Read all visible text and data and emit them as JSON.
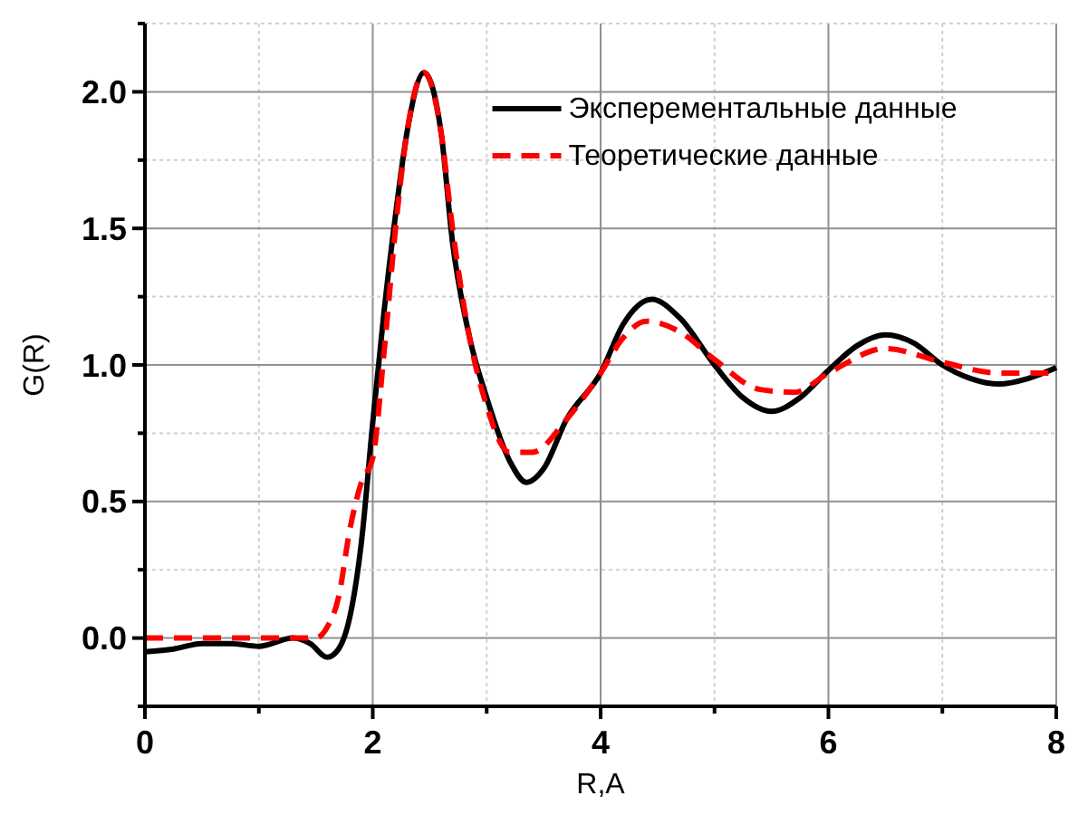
{
  "chart_data": {
    "type": "line",
    "xlabel": "R,A",
    "ylabel": "G(R)",
    "xlim": [
      0,
      8
    ],
    "ylim": [
      -0.25,
      2.25
    ],
    "xticks": [
      0,
      {
        "value": 1,
        "label": null
      },
      2,
      {
        "value": 3,
        "label": null
      },
      4,
      {
        "value": 5,
        "label": null
      },
      6,
      {
        "value": 7,
        "label": null
      },
      8
    ],
    "yticks": [
      {
        "value": -0.25,
        "label": null
      },
      {
        "value": 0,
        "label": "0.0"
      },
      {
        "value": 0.25,
        "label": null
      },
      {
        "value": 0.5,
        "label": "0.5"
      },
      {
        "value": 0.75,
        "label": null
      },
      {
        "value": 1,
        "label": "1.0"
      },
      {
        "value": 1.25,
        "label": null
      },
      {
        "value": 1.5,
        "label": "1.5"
      },
      {
        "value": 1.75,
        "label": null
      },
      {
        "value": 2,
        "label": "2.0"
      },
      {
        "value": 2.25,
        "label": null
      }
    ],
    "grid": true,
    "legend": "top right",
    "series": [
      {
        "name": "Эксперементальные данные",
        "color": "#000000",
        "line_style": "solid",
        "x": [
          0,
          0.25,
          0.5,
          0.75,
          1,
          1.3,
          1.45,
          1.6,
          1.7,
          1.8,
          1.9,
          2,
          2.1,
          2.2,
          2.3,
          2.45,
          2.6,
          2.7,
          2.85,
          3,
          3.2,
          3.35,
          3.5,
          3.7,
          4,
          4.2,
          4.45,
          4.7,
          5,
          5.25,
          5.5,
          5.75,
          6,
          6.25,
          6.5,
          6.75,
          7,
          7.25,
          7.5,
          7.75,
          8
        ],
        "values": [
          -0.05,
          -0.04,
          -0.02,
          -0.02,
          -0.03,
          0.0,
          -0.02,
          -0.07,
          -0.04,
          0.08,
          0.35,
          0.79,
          1.2,
          1.55,
          1.85,
          2.07,
          1.85,
          1.45,
          1.1,
          0.88,
          0.65,
          0.57,
          0.62,
          0.8,
          0.97,
          1.15,
          1.24,
          1.17,
          1.0,
          0.88,
          0.83,
          0.88,
          0.98,
          1.07,
          1.11,
          1.08,
          1.0,
          0.95,
          0.93,
          0.95,
          0.99
        ]
      },
      {
        "name": "Теоретические данные",
        "color": "#ff0000",
        "line_style": "dashed",
        "x": [
          0,
          0.5,
          1,
          1.5,
          1.6,
          1.7,
          1.8,
          1.9,
          2,
          2.1,
          2.2,
          2.3,
          2.45,
          2.6,
          2.7,
          2.85,
          3,
          3.2,
          3.4,
          3.7,
          4,
          4.2,
          4.4,
          4.7,
          5,
          5.4,
          5.7,
          6,
          6.5,
          7,
          7.5,
          8
        ],
        "values": [
          0,
          0,
          0,
          0,
          0.04,
          0.15,
          0.4,
          0.57,
          0.66,
          1.05,
          1.5,
          1.85,
          2.07,
          1.85,
          1.5,
          1.1,
          0.85,
          0.68,
          0.68,
          0.8,
          0.97,
          1.1,
          1.16,
          1.12,
          1.02,
          0.91,
          0.9,
          0.97,
          1.06,
          1.01,
          0.97,
          0.97
        ]
      }
    ]
  }
}
